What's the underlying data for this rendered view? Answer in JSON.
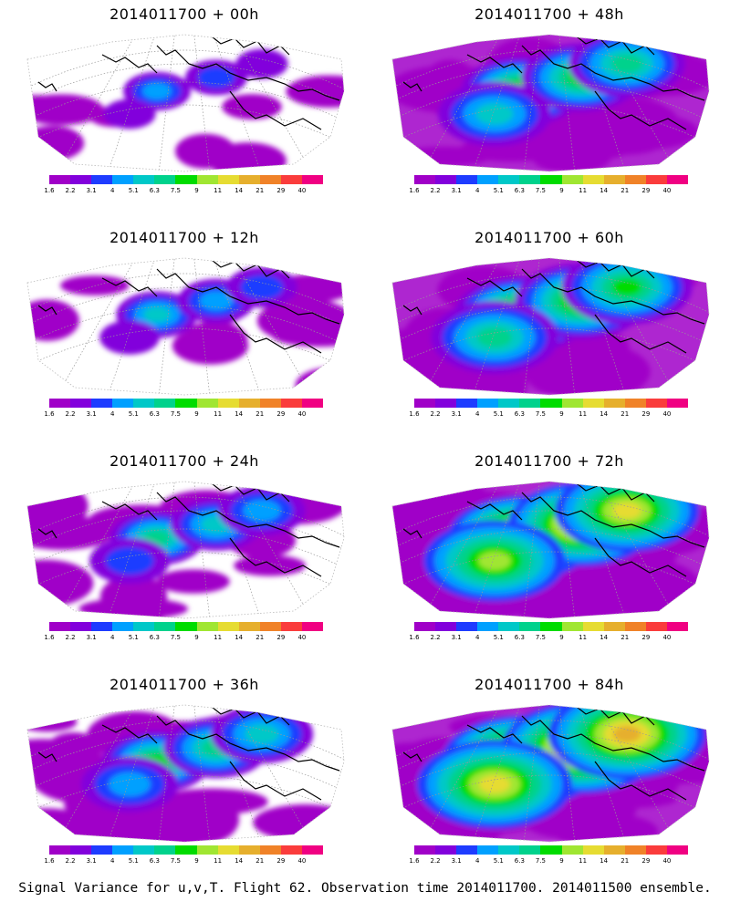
{
  "caption": "Signal Variance for u,v,T. Flight 62. Observation time 2014011700. 2014011500 ensemble.",
  "colorbar": {
    "labels": [
      "1.6",
      "2.2",
      "3.1",
      "4",
      "5.1",
      "6.3",
      "7.5",
      "9",
      "11",
      "14",
      "21",
      "29",
      "40"
    ],
    "colors": [
      "#a000c8",
      "#8200dc",
      "#1e3cff",
      "#00a0ff",
      "#00c8c8",
      "#00d28c",
      "#00dc00",
      "#a0e632",
      "#e6dc32",
      "#e6af2d",
      "#f08228",
      "#fa3c3c",
      "#f00082"
    ]
  },
  "panels": [
    {
      "title": "2014011700 + 00h",
      "intensity": 0
    },
    {
      "title": "2014011700 + 12h",
      "intensity": 1
    },
    {
      "title": "2014011700 + 24h",
      "intensity": 2
    },
    {
      "title": "2014011700 + 36h",
      "intensity": 3
    },
    {
      "title": "2014011700 + 48h",
      "intensity": 4
    },
    {
      "title": "2014011700 + 60h",
      "intensity": 5
    },
    {
      "title": "2014011700 + 72h",
      "intensity": 6
    },
    {
      "title": "2014011700 + 84h",
      "intensity": 7
    }
  ]
}
